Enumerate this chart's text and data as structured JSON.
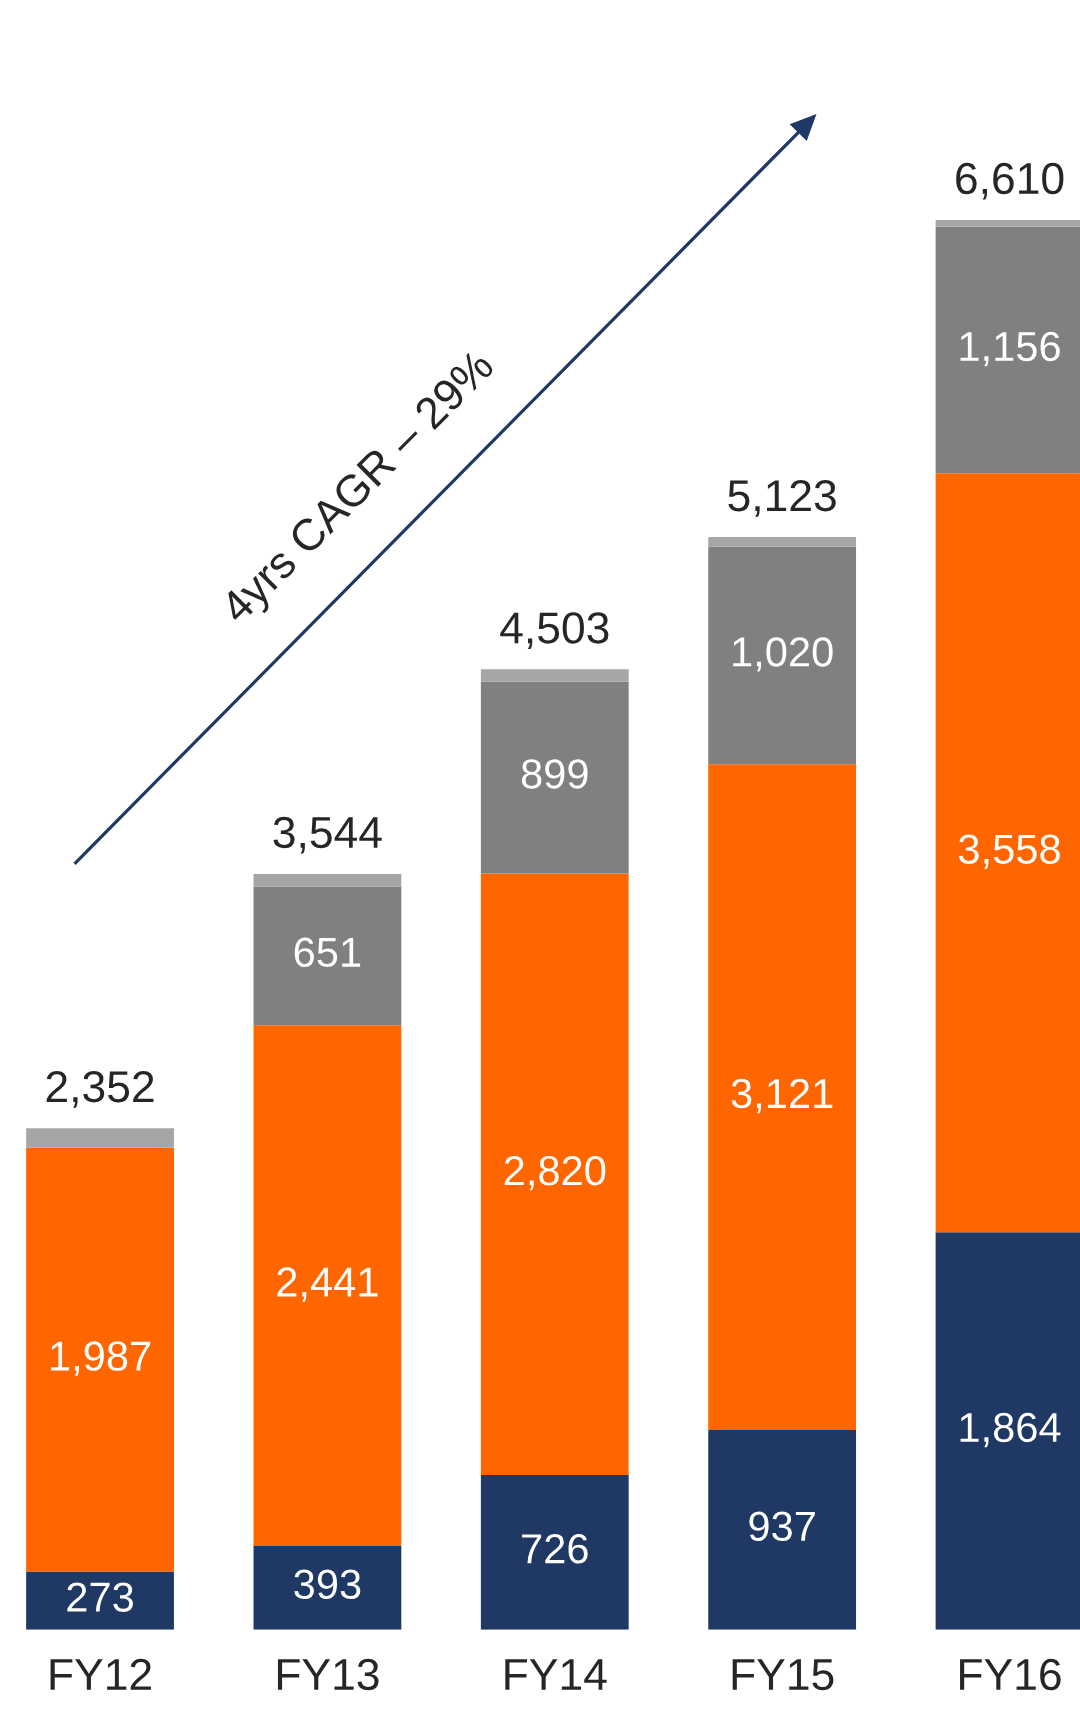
{
  "chart_data": {
    "type": "bar",
    "stacked": true,
    "categories": [
      "FY12",
      "FY13",
      "FY14",
      "FY15",
      "FY16"
    ],
    "series": [
      {
        "color": "#1f3864",
        "values": [
          273,
          393,
          726,
          937,
          1864
        ],
        "value_labels": [
          "273",
          "393",
          "726",
          "937",
          "1,864"
        ]
      },
      {
        "color": "#ff6600",
        "values": [
          1987,
          2441,
          2820,
          3121,
          3558
        ],
        "value_labels": [
          "1,987",
          "2,441",
          "2,820",
          "3,121",
          "3,558"
        ]
      },
      {
        "color": "#808080",
        "values": [
          null,
          651,
          899,
          1020,
          1156
        ],
        "value_labels": [
          null,
          "651",
          "899",
          "1,020",
          "1,156"
        ]
      },
      {
        "color": "#a6a6a6",
        "values": [
          92,
          59,
          58,
          45,
          32
        ],
        "value_labels": [
          null,
          null,
          null,
          null,
          null
        ]
      }
    ],
    "totals": [
      "2,352",
      "3,544",
      "4,503",
      "5,123",
      "6,610"
    ],
    "annotations": [
      "4yrs CAGR – 29%"
    ],
    "grid": false,
    "legend": false
  }
}
